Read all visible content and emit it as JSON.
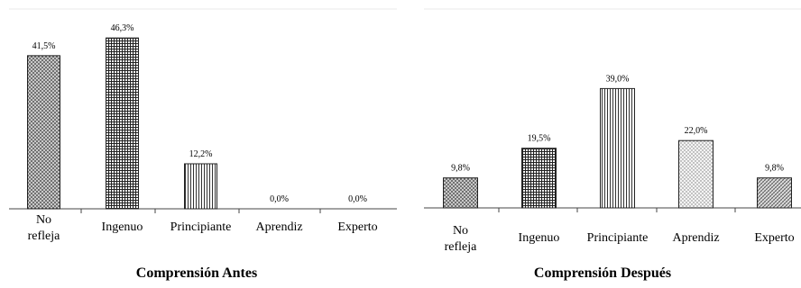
{
  "chart_data": [
    {
      "type": "bar",
      "title": "Comprensión Antes",
      "categories": [
        "No refleja",
        "Ingenuo",
        "Principiante",
        "Aprendiz",
        "Experto"
      ],
      "category_lines": [
        [
          "No",
          "refleja"
        ],
        [
          "Ingenuo"
        ],
        [
          "Principiante"
        ],
        [
          "Aprendiz"
        ],
        [
          "Experto"
        ]
      ],
      "values": [
        41.5,
        46.3,
        12.2,
        0.0,
        0.0
      ],
      "value_labels": [
        "41,5%",
        "46,3%",
        "12,2%",
        "0,0%",
        "0,0%"
      ],
      "patterns": [
        "dots",
        "grid",
        "vlines",
        "none",
        "none"
      ],
      "ylim": [
        0,
        50
      ]
    },
    {
      "type": "bar",
      "title": "Comprensión Después",
      "categories": [
        "No refleja",
        "Ingenuo",
        "Principiante",
        "Aprendiz",
        "Experto"
      ],
      "category_lines": [
        [
          "No",
          "refleja"
        ],
        [
          "Ingenuo"
        ],
        [
          "Principiante"
        ],
        [
          "Aprendiz"
        ],
        [
          "Experto"
        ]
      ],
      "values": [
        9.8,
        19.5,
        39.0,
        22.0,
        9.8
      ],
      "value_labels": [
        "9,8%",
        "19,5%",
        "39,0%",
        "22,0%",
        "9,8%"
      ],
      "patterns": [
        "dots",
        "grid",
        "vlines",
        "lightdots",
        "diag"
      ],
      "ylim": [
        0,
        50
      ]
    }
  ]
}
